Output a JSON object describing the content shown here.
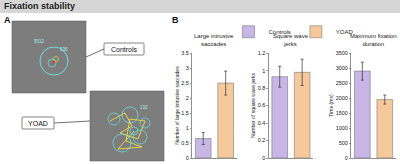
{
  "title": "Fixation stability",
  "panels": {
    "a": {
      "label": "A",
      "images": [
        {
          "label": "Controls",
          "numbers": [
            "9512",
            "536"
          ]
        },
        {
          "label": "YOAD",
          "numbers": [
            "132"
          ]
        }
      ]
    },
    "b": {
      "label": "B"
    }
  },
  "chart_data": [
    {
      "type": "bar",
      "title": "Large intrusive saccades",
      "ylabel": "Number of large intrusive saccades",
      "categories": [
        "Controls",
        "YOAD"
      ],
      "values": [
        0.65,
        2.5
      ],
      "errors": [
        0.2,
        0.4
      ],
      "colors": [
        "#c8b6e6",
        "#f6c99c"
      ],
      "ylim": [
        0,
        3.5
      ],
      "yticks": [
        0,
        0.5,
        1,
        1.5,
        2,
        2.5,
        3,
        3.5
      ],
      "tick_labels": "y",
      "legend": "top"
    },
    {
      "type": "bar",
      "title": "Square wave jerks",
      "ylabel": "Number of square wave jerks",
      "categories": [
        "Controls",
        "YOAD"
      ],
      "values": [
        0.93,
        0.98
      ],
      "errors": [
        0.12,
        0.15
      ],
      "colors": [
        "#c8b6e6",
        "#f6c99c"
      ],
      "ylim": [
        0,
        1.2
      ],
      "yticks": [
        0,
        0.2,
        0.4,
        0.6,
        0.8,
        1,
        1.2
      ],
      "tick_labels": "y"
    },
    {
      "type": "bar",
      "title": "Maximum fixation duration",
      "ylabel": "Time (ms)",
      "categories": [
        "Controls",
        "YOAD"
      ],
      "values": [
        2900,
        1950
      ],
      "errors": [
        300,
        150
      ],
      "colors": [
        "#c8b6e6",
        "#f6c99c"
      ],
      "ylim": [
        0,
        3500
      ],
      "yticks": [
        0,
        500,
        1000,
        1500,
        2000,
        2500,
        3000,
        3500
      ],
      "tick_labels": "y"
    }
  ]
}
